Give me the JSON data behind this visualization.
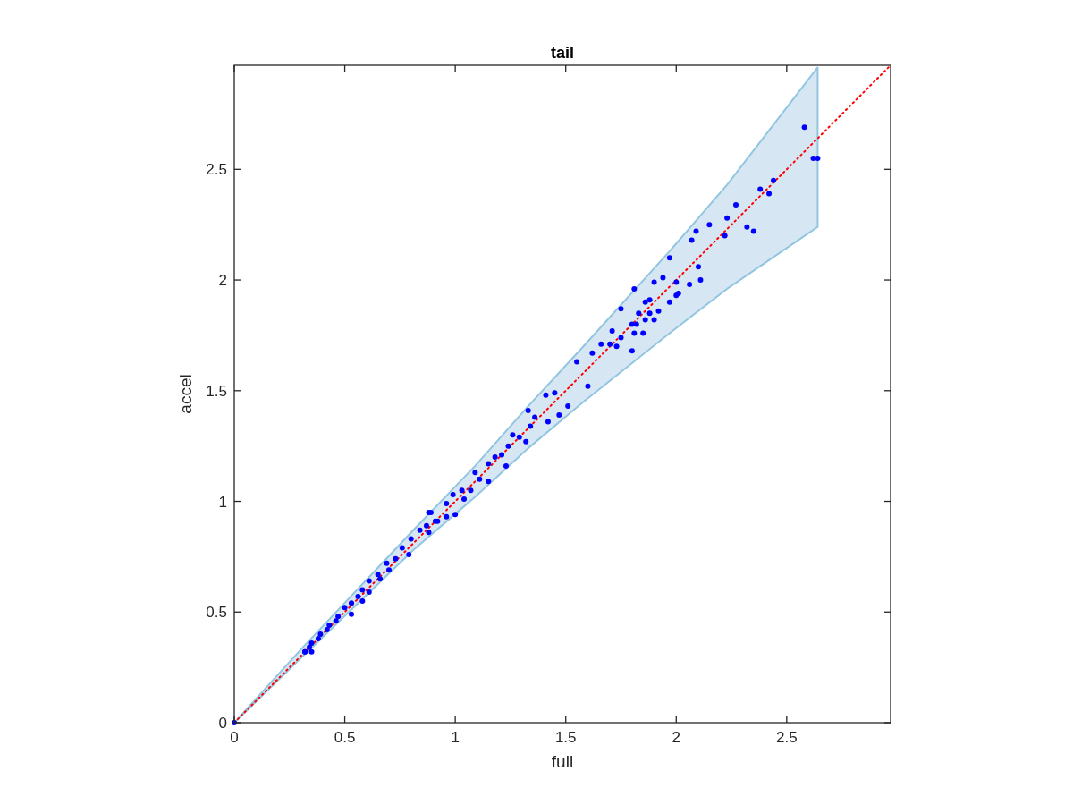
{
  "chart_data": {
    "type": "scatter",
    "title": "tail",
    "xlabel": "full",
    "ylabel": "accel",
    "xlim": [
      0,
      2.97
    ],
    "ylim": [
      0,
      2.97
    ],
    "xticks": [
      0,
      0.5,
      1,
      1.5,
      2,
      2.5
    ],
    "yticks": [
      0,
      0.5,
      1,
      1.5,
      2,
      2.5
    ],
    "grid": false,
    "series": [
      {
        "type": "line",
        "color": "#ff0000",
        "line_style": "dotted",
        "marker": "none",
        "x": [
          0,
          0.31,
          0.81,
          1.09,
          1.33,
          1.58,
          1.97,
          2.23,
          2.64,
          2.97
        ],
        "values": [
          0,
          0.31,
          0.81,
          1.09,
          1.33,
          1.58,
          1.97,
          2.23,
          2.64,
          2.97
        ],
        "lower": [
          0,
          0.3,
          0.78,
          1.02,
          1.24,
          1.45,
          1.76,
          1.96,
          2.24,
          null
        ],
        "upper": [
          0,
          0.34,
          0.87,
          1.16,
          1.43,
          1.7,
          2.13,
          2.43,
          2.96,
          null
        ]
      },
      {
        "color": "#0000ff",
        "marker": "circle",
        "x": [
          0,
          0.32,
          0.35,
          0.32,
          0.34,
          0.35,
          0.38,
          0.39,
          0.42,
          0.43,
          0.46,
          0.47,
          0.53,
          0.5,
          0.53,
          0.58,
          0.56,
          0.61,
          0.58,
          0.61,
          0.66,
          0.65,
          0.7,
          0.69,
          0.73,
          0.79,
          0.76,
          0.8,
          0.88,
          0.84,
          0.91,
          0.88,
          0.87,
          0.89,
          0.92,
          0.96,
          1.0,
          1.04,
          0.96,
          0.99,
          1.07,
          1.03,
          1.15,
          1.11,
          1.09,
          1.23,
          1.15,
          1.18,
          1.21,
          1.24,
          1.32,
          1.29,
          1.26,
          1.42,
          1.34,
          1.36,
          1.33,
          1.41,
          1.45,
          1.47,
          1.51,
          1.6,
          1.55,
          1.62,
          1.66,
          1.7,
          1.73,
          1.8,
          1.71,
          1.75,
          1.81,
          1.85,
          1.8,
          1.82,
          1.86,
          1.9,
          1.88,
          1.83,
          1.92,
          1.75,
          1.97,
          1.88,
          1.86,
          2.0,
          2.01,
          1.81,
          2.06,
          2.0,
          1.9,
          1.94,
          2.11,
          2.1,
          1.97,
          2.07,
          2.09,
          2.15,
          2.22,
          2.35,
          2.32,
          2.23,
          2.27,
          2.42,
          2.38,
          2.44,
          2.64,
          2.62,
          2.58
        ],
        "values": [
          0,
          0.32,
          0.32,
          0.32,
          0.34,
          0.36,
          0.38,
          0.4,
          0.42,
          0.44,
          0.46,
          0.48,
          0.49,
          0.52,
          0.54,
          0.55,
          0.57,
          0.59,
          0.6,
          0.64,
          0.65,
          0.67,
          0.69,
          0.72,
          0.74,
          0.76,
          0.79,
          0.83,
          0.86,
          0.87,
          0.91,
          0.95,
          0.89,
          0.95,
          0.91,
          0.93,
          0.94,
          1.01,
          0.99,
          1.03,
          1.05,
          1.05,
          1.09,
          1.1,
          1.13,
          1.16,
          1.17,
          1.2,
          1.21,
          1.25,
          1.27,
          1.29,
          1.3,
          1.36,
          1.34,
          1.38,
          1.41,
          1.48,
          1.49,
          1.39,
          1.43,
          1.52,
          1.63,
          1.67,
          1.71,
          1.71,
          1.7,
          1.68,
          1.77,
          1.74,
          1.76,
          1.76,
          1.8,
          1.8,
          1.82,
          1.82,
          1.85,
          1.85,
          1.86,
          1.87,
          1.9,
          1.91,
          1.9,
          1.93,
          1.94,
          1.96,
          1.98,
          1.99,
          1.99,
          2.01,
          2.0,
          2.06,
          2.1,
          2.18,
          2.22,
          2.25,
          2.2,
          2.22,
          2.24,
          2.28,
          2.34,
          2.39,
          2.41,
          2.45,
          2.55,
          2.55,
          2.69
        ]
      }
    ]
  }
}
